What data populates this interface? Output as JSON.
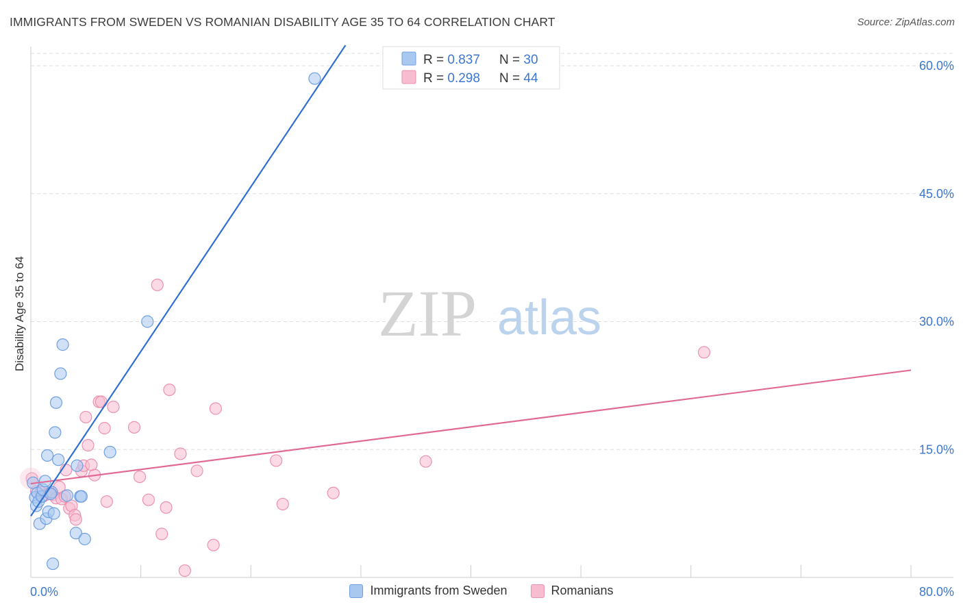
{
  "title": "IMMIGRANTS FROM SWEDEN VS ROMANIAN DISABILITY AGE 35 TO 64 CORRELATION CHART",
  "source": "Source: ZipAtlas.com",
  "watermark": {
    "zip": "ZIP",
    "atlas": "atlas"
  },
  "colors": {
    "blue_fill": "#a9c8f0",
    "blue_stroke": "#6f9fe0",
    "blue_line": "#2f6fcf",
    "pink_fill": "#f7bcd0",
    "pink_stroke": "#eb91b0",
    "pink_line": "#e06a95",
    "axis_text": "#3b76d0",
    "grid": "#dddddd"
  },
  "legend_top": [
    {
      "r_label": "R = ",
      "r_value": "0.837",
      "n_label": "N = ",
      "n_value": "30"
    },
    {
      "r_label": "R = ",
      "r_value": "0.298",
      "n_label": "N = ",
      "n_value": "44"
    }
  ],
  "legend_bottom": [
    "Immigrants from Sweden",
    "Romanians"
  ],
  "chart_data": {
    "type": "scatter",
    "title": "IMMIGRANTS FROM SWEDEN VS ROMANIAN DISABILITY AGE 35 TO 64 CORRELATION CHART",
    "xlabel": "",
    "ylabel": "Disability Age 35 to 64",
    "xlim": [
      0,
      80
    ],
    "ylim": [
      0,
      60
    ],
    "x_tick_labels": [
      "0.0%",
      "80.0%"
    ],
    "y_tick_labels": [
      "15.0%",
      "30.0%",
      "45.0%",
      "60.0%"
    ],
    "y_tick_values": [
      15,
      30,
      45,
      60
    ],
    "series": [
      {
        "name": "Immigrants from Sweden",
        "r": 0.837,
        "n": 30,
        "trend": {
          "x": [
            0,
            28.6
          ],
          "y": [
            7.2,
            62.4
          ]
        },
        "points": [
          [
            0.2,
            11.1
          ],
          [
            0.4,
            9.4
          ],
          [
            0.5,
            8.4
          ],
          [
            0.6,
            9.9
          ],
          [
            0.7,
            8.9
          ],
          [
            0.8,
            6.3
          ],
          [
            1.0,
            9.5
          ],
          [
            1.1,
            10.3
          ],
          [
            1.3,
            11.3
          ],
          [
            1.4,
            6.9
          ],
          [
            1.5,
            14.3
          ],
          [
            1.6,
            7.7
          ],
          [
            1.9,
            10.0
          ],
          [
            2.1,
            7.5
          ],
          [
            2.2,
            17.0
          ],
          [
            2.3,
            20.5
          ],
          [
            2.5,
            13.8
          ],
          [
            2.7,
            23.9
          ],
          [
            2.9,
            27.3
          ],
          [
            3.3,
            9.6
          ],
          [
            4.1,
            5.2
          ],
          [
            4.2,
            13.1
          ],
          [
            4.5,
            9.5
          ],
          [
            4.6,
            9.5
          ],
          [
            4.9,
            4.5
          ],
          [
            2.0,
            1.6
          ],
          [
            7.2,
            14.7
          ],
          [
            10.6,
            30.0
          ],
          [
            25.8,
            58.5
          ],
          [
            1.8,
            9.8
          ]
        ]
      },
      {
        "name": "Romanians",
        "r": 0.298,
        "n": 44,
        "trend": {
          "x": [
            0,
            80
          ],
          "y": [
            11.0,
            24.3
          ]
        },
        "points": [
          [
            0.1,
            11.6
          ],
          [
            0.5,
            10.1
          ],
          [
            0.9,
            10.0
          ],
          [
            1.1,
            9.5
          ],
          [
            1.4,
            9.7
          ],
          [
            1.7,
            9.9
          ],
          [
            2.0,
            9.7
          ],
          [
            2.3,
            9.3
          ],
          [
            2.6,
            10.6
          ],
          [
            2.8,
            9.2
          ],
          [
            3.1,
            9.5
          ],
          [
            3.2,
            12.6
          ],
          [
            3.5,
            8.1
          ],
          [
            3.7,
            8.4
          ],
          [
            4.0,
            7.3
          ],
          [
            4.1,
            6.8
          ],
          [
            4.6,
            12.5
          ],
          [
            4.8,
            13.1
          ],
          [
            5.0,
            18.8
          ],
          [
            5.2,
            15.5
          ],
          [
            5.5,
            13.2
          ],
          [
            5.8,
            12.0
          ],
          [
            6.2,
            20.6
          ],
          [
            6.4,
            20.6
          ],
          [
            6.7,
            17.5
          ],
          [
            6.9,
            8.9
          ],
          [
            7.5,
            20.0
          ],
          [
            9.4,
            17.6
          ],
          [
            9.9,
            11.8
          ],
          [
            10.7,
            9.1
          ],
          [
            11.9,
            5.1
          ],
          [
            11.5,
            34.3
          ],
          [
            12.3,
            8.2
          ],
          [
            12.6,
            22.0
          ],
          [
            13.6,
            14.5
          ],
          [
            14.0,
            0.8
          ],
          [
            15.1,
            12.5
          ],
          [
            16.6,
            3.8
          ],
          [
            16.8,
            19.8
          ],
          [
            22.3,
            13.7
          ],
          [
            22.9,
            8.6
          ],
          [
            27.5,
            9.9
          ],
          [
            35.9,
            13.6
          ],
          [
            61.2,
            26.4
          ]
        ]
      }
    ]
  }
}
